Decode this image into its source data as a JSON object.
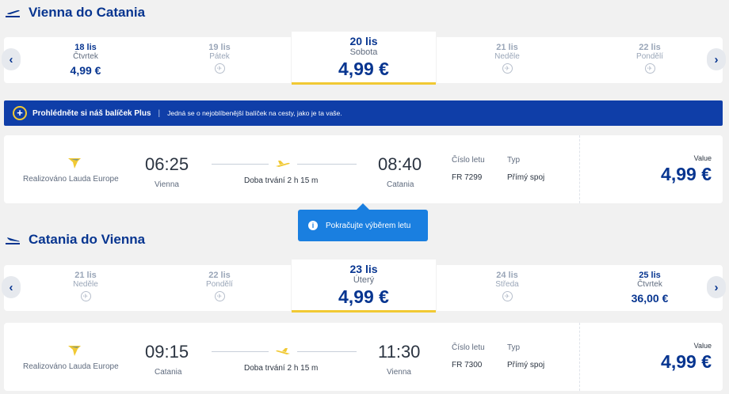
{
  "outbound": {
    "title": "Vienna do Catania",
    "dates": [
      {
        "day": "18 lis",
        "weekday": "Čtvrtek",
        "price": "4,99 €",
        "available": true,
        "selected": false
      },
      {
        "day": "19 lis",
        "weekday": "Pátek",
        "price": "",
        "available": false,
        "selected": false
      },
      {
        "day": "20 lis",
        "weekday": "Sobota",
        "price": "4,99 €",
        "available": true,
        "selected": true
      },
      {
        "day": "21 lis",
        "weekday": "Neděle",
        "price": "",
        "available": false,
        "selected": false
      },
      {
        "day": "22 lis",
        "weekday": "Pondělí",
        "price": "",
        "available": false,
        "selected": false
      }
    ],
    "flight": {
      "operator": "Realizováno Lauda Europe",
      "dep_time": "06:25",
      "dep_city": "Vienna",
      "duration": "Doba trvání 2 h 15 m",
      "arr_time": "08:40",
      "arr_city": "Catania",
      "num_label": "Číslo letu",
      "num": "FR 7299",
      "type_label": "Typ",
      "type": "Přímý spoj",
      "fare_label": "Value",
      "price": "4,99 €"
    }
  },
  "banner": {
    "title": "Prohlédněte si náš balíček Plus",
    "separator": "|",
    "text": "Jedná se o nejoblíbenější balíček na cesty, jako je ta vaše."
  },
  "tooltip": {
    "text": "Pokračujte výběrem letu"
  },
  "inbound": {
    "title": "Catania do Vienna",
    "dates": [
      {
        "day": "21 lis",
        "weekday": "Neděle",
        "price": "",
        "available": false,
        "selected": false
      },
      {
        "day": "22 lis",
        "weekday": "Pondělí",
        "price": "",
        "available": false,
        "selected": false
      },
      {
        "day": "23 lis",
        "weekday": "Úterý",
        "price": "4,99 €",
        "available": true,
        "selected": true
      },
      {
        "day": "24 lis",
        "weekday": "Středa",
        "price": "",
        "available": false,
        "selected": false
      },
      {
        "day": "25 lis",
        "weekday": "Čtvrtek",
        "price": "36,00 €",
        "available": true,
        "selected": false
      }
    ],
    "flight": {
      "operator": "Realizováno Lauda Europe",
      "dep_time": "09:15",
      "dep_city": "Catania",
      "duration": "Doba trvání 2 h 15 m",
      "arr_time": "11:30",
      "arr_city": "Vienna",
      "num_label": "Číslo letu",
      "num": "FR 7300",
      "type_label": "Typ",
      "type": "Přímý spoj",
      "fare_label": "Value",
      "price": "4,99 €"
    }
  },
  "icons": {
    "nav_prev": "chevron-left-icon",
    "nav_next": "chevron-right-icon",
    "no_flight": "no-flight-icon",
    "airline_logo": "ryanair-harp-logo",
    "plane": "plane-icon",
    "info": "info-icon",
    "plus": "plus-circle-icon"
  },
  "colors": {
    "brand_blue": "#073590",
    "accent_yellow": "#f1c933",
    "banner_blue": "#0f3ea8",
    "tooltip_blue": "#1a7fe0"
  }
}
